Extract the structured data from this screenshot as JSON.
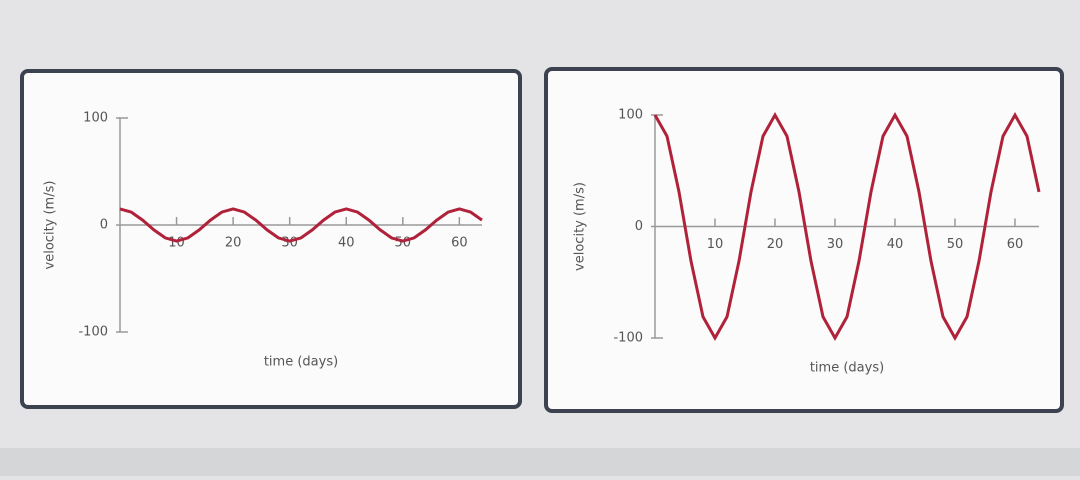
{
  "chart_data": [
    {
      "type": "line",
      "x_label": "time (days)",
      "y_label": "velocity (m/s)",
      "x": [
        0,
        2,
        4,
        6,
        8,
        10,
        12,
        14,
        16,
        18,
        20,
        22,
        24,
        26,
        28,
        30,
        32,
        34,
        36,
        38,
        40,
        42,
        44,
        46,
        48,
        50,
        52,
        54,
        56,
        58,
        60,
        62,
        64
      ],
      "values": [
        15,
        12.1,
        4.6,
        -4.6,
        -12.1,
        -15,
        -12.1,
        -4.6,
        4.6,
        12.1,
        15,
        12.1,
        4.6,
        -4.6,
        -12.1,
        -15,
        -12.1,
        -4.6,
        4.6,
        12.1,
        15,
        12.1,
        4.6,
        -4.6,
        -12.1,
        -15,
        -12.1,
        -4.6,
        4.6,
        12.1,
        15,
        12.1,
        4.6
      ],
      "color": "#b0223a",
      "xlim": [
        0,
        64
      ],
      "ylim": [
        -100,
        100
      ],
      "xticks": [
        10,
        20,
        30,
        40,
        50,
        60
      ],
      "yticks": [
        -100,
        0,
        100
      ]
    },
    {
      "type": "line",
      "x_label": "time (days)",
      "y_label": "velocity (m/s)",
      "x": [
        0,
        2,
        4,
        6,
        8,
        10,
        12,
        14,
        16,
        18,
        20,
        22,
        24,
        26,
        28,
        30,
        32,
        34,
        36,
        38,
        40,
        42,
        44,
        46,
        48,
        50,
        52,
        54,
        56,
        58,
        60,
        62,
        64
      ],
      "values": [
        100,
        81,
        31,
        -31,
        -81,
        -100,
        -81,
        -31,
        31,
        81,
        100,
        81,
        31,
        -31,
        -81,
        -100,
        -81,
        -31,
        31,
        81,
        100,
        81,
        31,
        -31,
        -81,
        -100,
        -81,
        -31,
        31,
        81,
        100,
        81,
        31
      ],
      "color": "#b0223a",
      "xlim": [
        0,
        64
      ],
      "ylim": [
        -100,
        100
      ],
      "xticks": [
        10,
        20,
        30,
        40,
        50,
        60
      ],
      "yticks": [
        -100,
        0,
        100
      ]
    }
  ]
}
